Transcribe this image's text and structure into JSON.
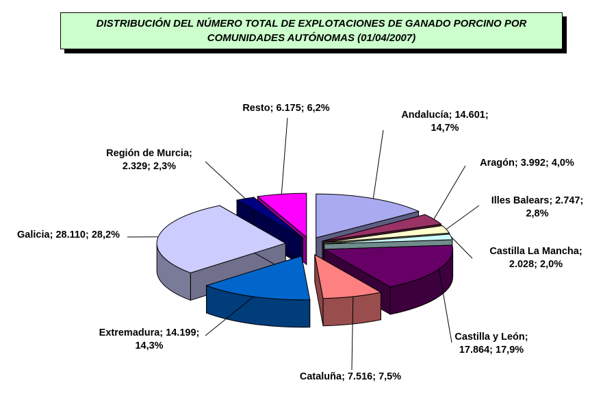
{
  "chart_data": {
    "type": "pie",
    "title": "DISTRIBUCIÓN DEL NÚMERO TOTAL DE EXPLOTACIONES DE GANADO PORCINO POR COMUNIDADES AUTÓNOMAS (01/04/2007)",
    "style": "3d-exploded",
    "slices": [
      {
        "name": "Andalucía",
        "value": 14601,
        "percent": 14.7,
        "color": "#aaaaf0",
        "label_lines": [
          "Andalucía; 14.601;",
          "14,7%"
        ]
      },
      {
        "name": "Aragón",
        "value": 3992,
        "percent": 4.0,
        "color": "#993366",
        "label_lines": [
          "Aragón; 3.992; 4,0%"
        ]
      },
      {
        "name": "Illes Balears",
        "value": 2747,
        "percent": 2.8,
        "color": "#ffffcc",
        "label_lines": [
          "Illes Balears; 2.747;",
          "2,8%"
        ]
      },
      {
        "name": "Castilla La Mancha",
        "value": 2028,
        "percent": 2.0,
        "color": "#ccffff",
        "label_lines": [
          "Castilla La Mancha;",
          "2.028; 2,0%"
        ]
      },
      {
        "name": "Castilla y León",
        "value": 17864,
        "percent": 17.9,
        "color": "#660066",
        "label_lines": [
          "Castilla y León;",
          "17.864; 17,9%"
        ]
      },
      {
        "name": "Cataluña",
        "value": 7516,
        "percent": 7.5,
        "color": "#ff8080",
        "label_lines": [
          "Cataluña; 7.516; 7,5%"
        ]
      },
      {
        "name": "Extremadura",
        "value": 14199,
        "percent": 14.3,
        "color": "#0066cc",
        "label_lines": [
          "Extremadura; 14.199;",
          "14,3%"
        ]
      },
      {
        "name": "Galicia",
        "value": 28110,
        "percent": 28.2,
        "color": "#ccccff",
        "label_lines": [
          "Galicia; 28.110; 28,2%"
        ]
      },
      {
        "name": "Región de Murcia",
        "value": 2329,
        "percent": 2.3,
        "color": "#000080",
        "label_lines": [
          "Región de Murcia;",
          "2.329; 2,3%"
        ]
      },
      {
        "name": "Resto",
        "value": 6175,
        "percent": 6.2,
        "color": "#ff00ff",
        "label_lines": [
          "Resto; 6.175; 6,2%"
        ]
      }
    ]
  }
}
